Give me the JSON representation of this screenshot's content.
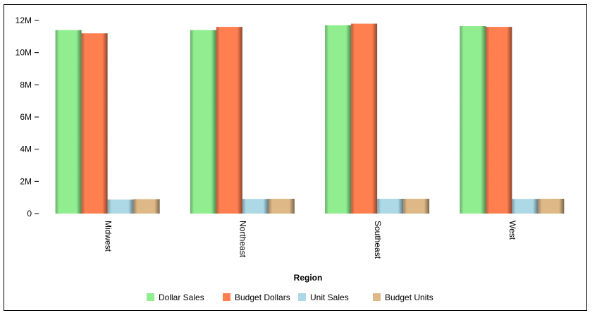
{
  "chart_data": {
    "type": "bar",
    "title": "",
    "xlabel": "Region",
    "ylabel": "",
    "categories": [
      "Midwest",
      "Northeast",
      "Southeast",
      "West"
    ],
    "ylim": [
      0,
      12000000
    ],
    "yticks": [
      0,
      2000000,
      4000000,
      6000000,
      8000000,
      10000000,
      12000000
    ],
    "ytick_labels": [
      "0",
      "2M",
      "4M",
      "6M",
      "8M",
      "10M",
      "12M"
    ],
    "grid": false,
    "legend_position": "bottom",
    "series": [
      {
        "name": "Dollar Sales",
        "color": "#90ee90",
        "values": [
          11400000,
          11400000,
          11700000,
          11650000
        ]
      },
      {
        "name": "Budget Dollars",
        "color": "#ff7f50",
        "values": [
          11200000,
          11600000,
          11800000,
          11600000
        ]
      },
      {
        "name": "Unit Sales",
        "color": "#add8e6",
        "values": [
          870000,
          910000,
          920000,
          910000
        ]
      },
      {
        "name": "Budget Units",
        "color": "#deb887",
        "values": [
          900000,
          920000,
          920000,
          920000
        ]
      }
    ]
  }
}
